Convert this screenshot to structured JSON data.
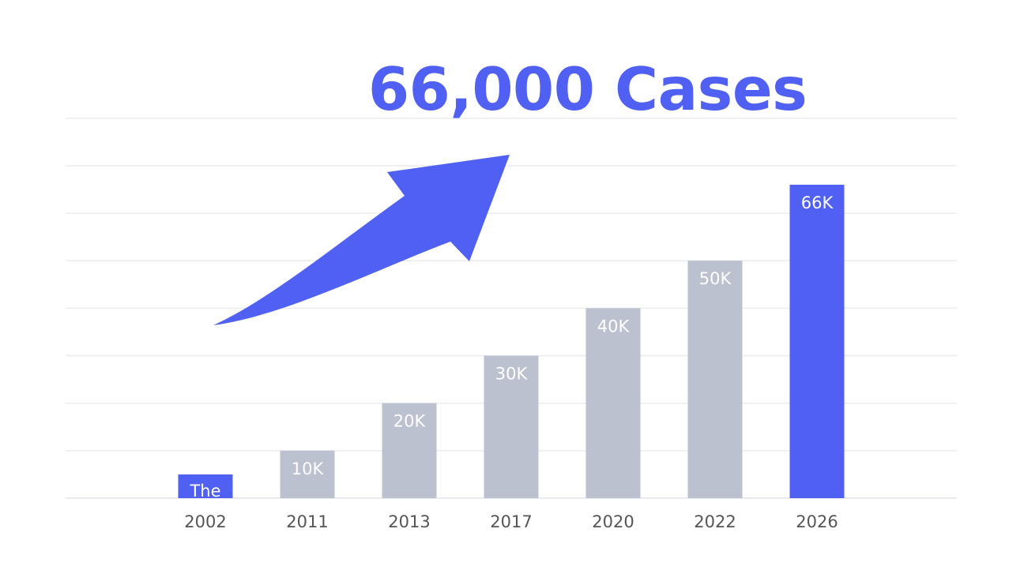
{
  "headline": "66,000 Cases",
  "colors": {
    "accent": "#5060f2",
    "muted_bar": "#bcc1d0",
    "grid": "#e9ebef",
    "tick_text": "#555555",
    "bar_label": "#ffffff"
  },
  "chart_data": {
    "type": "bar",
    "title": "",
    "xlabel": "",
    "ylabel": "",
    "categories": [
      "2002",
      "2011",
      "2013",
      "2017",
      "2020",
      "2022",
      "2026"
    ],
    "values": [
      5000,
      10000,
      20000,
      30000,
      40000,
      50000,
      66000
    ],
    "value_labels": [
      "The Start",
      "10K",
      "20K",
      "30K",
      "40K",
      "50K",
      "66K"
    ],
    "highlighted": [
      true,
      false,
      false,
      false,
      false,
      false,
      true
    ],
    "ylim": [
      0,
      80000
    ],
    "grid": true,
    "legend": "none",
    "annotation": "upward trend arrow"
  }
}
